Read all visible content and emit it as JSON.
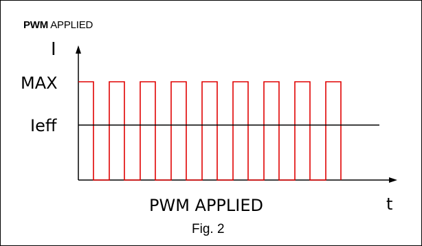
{
  "title": {
    "bold": "PWM",
    "rest": "APPLIED"
  },
  "labels": {
    "y_axis": "I",
    "max": "MAX",
    "ieff": "Ieff",
    "x_caption": "PWM APPLIED",
    "t_axis": "t",
    "fig": "Fig. 2"
  },
  "pulses": {
    "count": 9
  },
  "colors": {
    "pulse": "#e00000",
    "axis": "#000000"
  }
}
